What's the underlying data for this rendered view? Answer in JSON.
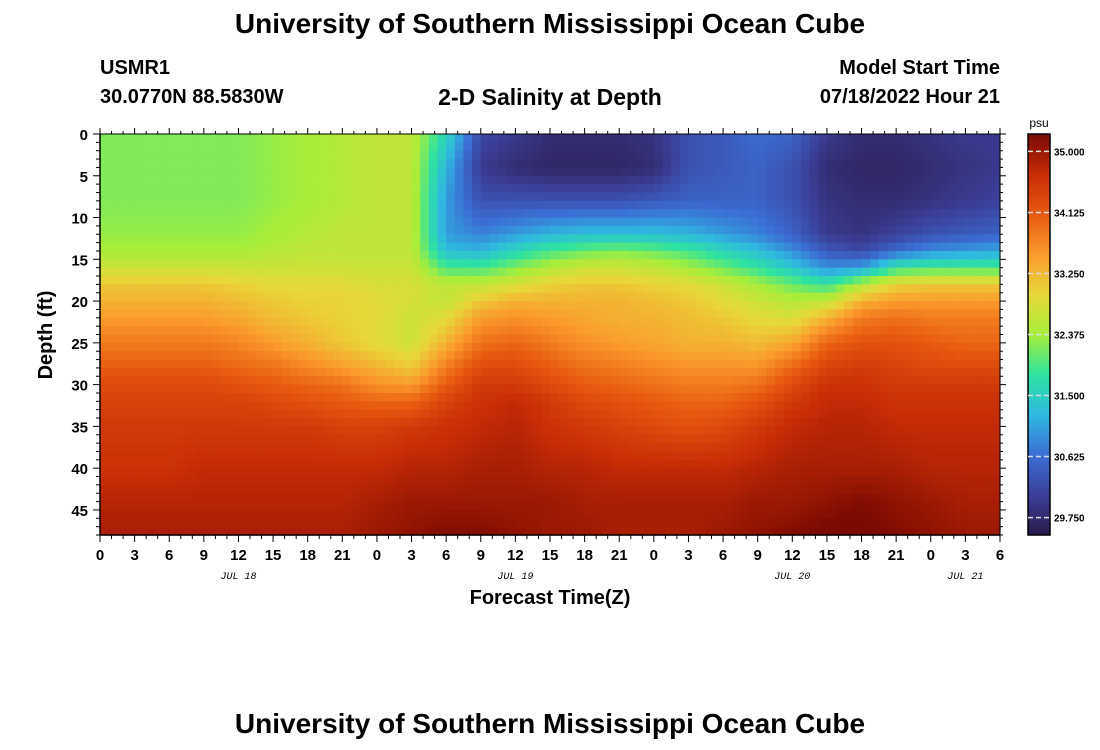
{
  "header": {
    "title": "University of Southern Mississippi Ocean Cube",
    "station_id": "USMR1",
    "station_coords": "30.0770N  88.5830W",
    "chart_title": "2-D Salinity at Depth",
    "model_label": "Model Start Time",
    "model_time": "07/18/2022 Hour 21"
  },
  "footer": {
    "title": "University of Southern Mississippi Ocean Cube"
  },
  "chart_data": {
    "type": "heatmap",
    "title": "2-D Salinity at Depth",
    "xlabel": "Forecast Time(Z)",
    "ylabel": "Depth (ft)",
    "x_ticks": [
      "0",
      "3",
      "6",
      "9",
      "12",
      "15",
      "18",
      "21",
      "0",
      "3",
      "6",
      "9",
      "12",
      "15",
      "18",
      "21",
      "0",
      "3",
      "6",
      "9",
      "12",
      "15",
      "18",
      "21",
      "0",
      "3",
      "6"
    ],
    "x_day_labels": [
      {
        "label": "JUL 18",
        "hour": 12
      },
      {
        "label": "JUL 19",
        "hour": 36
      },
      {
        "label": "JUL 20",
        "hour": 60
      },
      {
        "label": "JUL 21",
        "hour": 75
      }
    ],
    "x_range_hours": [
      0,
      78
    ],
    "y_ticks": [
      0,
      5,
      10,
      15,
      20,
      25,
      30,
      35,
      40,
      45
    ],
    "y_range_ft": [
      0,
      48
    ],
    "y_inverted": true,
    "colorbar": {
      "unit": "psu",
      "ticks": [
        "35.000",
        "34.125",
        "33.250",
        "32.375",
        "31.500",
        "30.625",
        "29.750"
      ],
      "range": [
        29.5,
        35.25
      ]
    },
    "colorscale": [
      "#2a1a4a",
      "#3b3f98",
      "#3b6fd6",
      "#2fb9e0",
      "#2ee3a0",
      "#a6ee3a",
      "#e8d83a",
      "#fb9a2c",
      "#e85a10",
      "#c62c06",
      "#7a0a02"
    ],
    "grid_times_hours": [
      0,
      3,
      6,
      9,
      12,
      15,
      18,
      21,
      24,
      27,
      30,
      33,
      36,
      39,
      42,
      45,
      48,
      51,
      54,
      57,
      60,
      63,
      66,
      69,
      72,
      75,
      78
    ],
    "grid_depths_ft": [
      0,
      4,
      8,
      12,
      14,
      16,
      18,
      20,
      22,
      25,
      28,
      30,
      32,
      35,
      40,
      44,
      48
    ],
    "salinity": [
      [
        32.2,
        32.2,
        32.2,
        32.2,
        32.2,
        32.3,
        32.4,
        32.5,
        32.6,
        32.6,
        31.6,
        30.2,
        30.0,
        29.8,
        29.8,
        29.8,
        29.9,
        30.3,
        30.4,
        30.6,
        30.5,
        30.0,
        29.8,
        29.8,
        29.9,
        30.0,
        30.0
      ],
      [
        32.2,
        32.2,
        32.2,
        32.2,
        32.2,
        32.3,
        32.4,
        32.5,
        32.6,
        32.6,
        31.2,
        30.0,
        29.8,
        29.7,
        29.7,
        29.7,
        29.8,
        30.3,
        30.4,
        30.5,
        30.3,
        29.8,
        29.7,
        29.7,
        29.8,
        29.9,
        30.0
      ],
      [
        32.2,
        32.2,
        32.2,
        32.2,
        32.2,
        32.3,
        32.4,
        32.5,
        32.6,
        32.6,
        31.0,
        30.3,
        30.3,
        30.3,
        30.3,
        30.3,
        30.4,
        30.5,
        30.5,
        30.5,
        30.3,
        29.9,
        29.8,
        29.8,
        29.9,
        30.0,
        30.1
      ],
      [
        32.3,
        32.3,
        32.3,
        32.3,
        32.3,
        32.4,
        32.5,
        32.6,
        32.6,
        32.6,
        31.0,
        30.8,
        31.0,
        31.2,
        31.3,
        31.3,
        31.3,
        31.2,
        31.0,
        30.8,
        30.5,
        30.0,
        29.9,
        30.1,
        30.3,
        30.4,
        30.5
      ],
      [
        32.4,
        32.4,
        32.4,
        32.4,
        32.4,
        32.5,
        32.6,
        32.6,
        32.6,
        32.6,
        31.3,
        31.2,
        31.6,
        31.9,
        32.1,
        32.2,
        32.1,
        31.9,
        31.6,
        31.3,
        30.9,
        30.4,
        30.2,
        30.6,
        30.9,
        31.0,
        31.1
      ],
      [
        32.7,
        32.7,
        32.7,
        32.7,
        32.7,
        32.7,
        32.7,
        32.7,
        32.7,
        32.7,
        31.9,
        31.9,
        32.2,
        32.5,
        32.7,
        32.7,
        32.6,
        32.4,
        32.1,
        31.8,
        31.4,
        30.9,
        31.0,
        31.8,
        31.9,
        31.9,
        31.9
      ],
      [
        33.1,
        33.1,
        33.1,
        33.1,
        33.0,
        32.9,
        32.9,
        32.9,
        32.8,
        32.8,
        32.6,
        32.6,
        32.8,
        33.0,
        33.1,
        33.1,
        33.0,
        32.9,
        32.7,
        32.4,
        32.1,
        31.8,
        32.5,
        33.0,
        33.1,
        33.1,
        33.1
      ],
      [
        33.3,
        33.3,
        33.3,
        33.3,
        33.2,
        33.1,
        33.0,
        33.0,
        32.9,
        32.8,
        32.6,
        33.1,
        33.3,
        33.3,
        33.3,
        33.3,
        33.2,
        33.1,
        32.9,
        32.7,
        32.5,
        32.6,
        33.3,
        33.5,
        33.5,
        33.5,
        33.5
      ],
      [
        33.5,
        33.5,
        33.5,
        33.5,
        33.4,
        33.2,
        33.1,
        33.0,
        32.9,
        32.7,
        32.9,
        33.5,
        33.6,
        33.5,
        33.4,
        33.3,
        33.3,
        33.2,
        33.1,
        32.9,
        32.8,
        33.3,
        33.8,
        33.9,
        33.8,
        33.8,
        33.8
      ],
      [
        33.8,
        33.8,
        33.8,
        33.8,
        33.7,
        33.5,
        33.3,
        33.1,
        32.9,
        32.7,
        33.3,
        33.9,
        34.0,
        33.8,
        33.6,
        33.5,
        33.4,
        33.3,
        33.3,
        33.2,
        33.4,
        34.0,
        34.2,
        34.2,
        34.1,
        34.0,
        34.0
      ],
      [
        34.1,
        34.1,
        34.1,
        34.1,
        34.0,
        33.9,
        33.7,
        33.5,
        33.3,
        33.1,
        33.8,
        34.3,
        34.3,
        34.1,
        33.9,
        33.8,
        33.7,
        33.6,
        33.6,
        33.6,
        34.0,
        34.4,
        34.5,
        34.4,
        34.3,
        34.3,
        34.3
      ],
      [
        34.3,
        34.3,
        34.3,
        34.3,
        34.2,
        34.1,
        34.0,
        33.9,
        33.6,
        33.5,
        34.1,
        34.5,
        34.5,
        34.3,
        34.1,
        34.0,
        33.9,
        33.8,
        33.8,
        33.9,
        34.3,
        34.6,
        34.6,
        34.5,
        34.5,
        34.5,
        34.5
      ],
      [
        34.4,
        34.4,
        34.4,
        34.4,
        34.4,
        34.3,
        34.2,
        34.1,
        34.0,
        34.0,
        34.4,
        34.6,
        34.7,
        34.5,
        34.3,
        34.2,
        34.1,
        34.0,
        34.0,
        34.2,
        34.5,
        34.7,
        34.7,
        34.6,
        34.6,
        34.6,
        34.6
      ],
      [
        34.5,
        34.5,
        34.5,
        34.5,
        34.5,
        34.5,
        34.5,
        34.4,
        34.4,
        34.5,
        34.6,
        34.7,
        34.8,
        34.6,
        34.5,
        34.4,
        34.3,
        34.2,
        34.3,
        34.5,
        34.7,
        34.8,
        34.8,
        34.7,
        34.7,
        34.7,
        34.7
      ],
      [
        34.6,
        34.6,
        34.6,
        34.7,
        34.7,
        34.7,
        34.7,
        34.7,
        34.7,
        34.8,
        34.8,
        34.9,
        34.9,
        34.8,
        34.8,
        34.7,
        34.7,
        34.7,
        34.7,
        34.8,
        34.9,
        34.9,
        34.9,
        34.9,
        34.8,
        34.8,
        34.8
      ],
      [
        34.8,
        34.8,
        34.8,
        34.8,
        34.8,
        34.8,
        34.8,
        34.8,
        34.9,
        35.0,
        35.0,
        35.0,
        35.0,
        35.0,
        34.9,
        34.9,
        34.9,
        34.9,
        34.9,
        35.0,
        35.0,
        35.1,
        35.2,
        35.1,
        35.0,
        34.9,
        34.9
      ],
      [
        34.9,
        34.9,
        34.9,
        34.9,
        34.9,
        34.9,
        34.9,
        34.9,
        35.0,
        35.1,
        35.2,
        35.2,
        35.1,
        35.0,
        35.0,
        34.9,
        34.9,
        34.9,
        35.0,
        35.1,
        35.2,
        35.3,
        35.3,
        35.2,
        35.1,
        35.0,
        35.0
      ]
    ]
  }
}
